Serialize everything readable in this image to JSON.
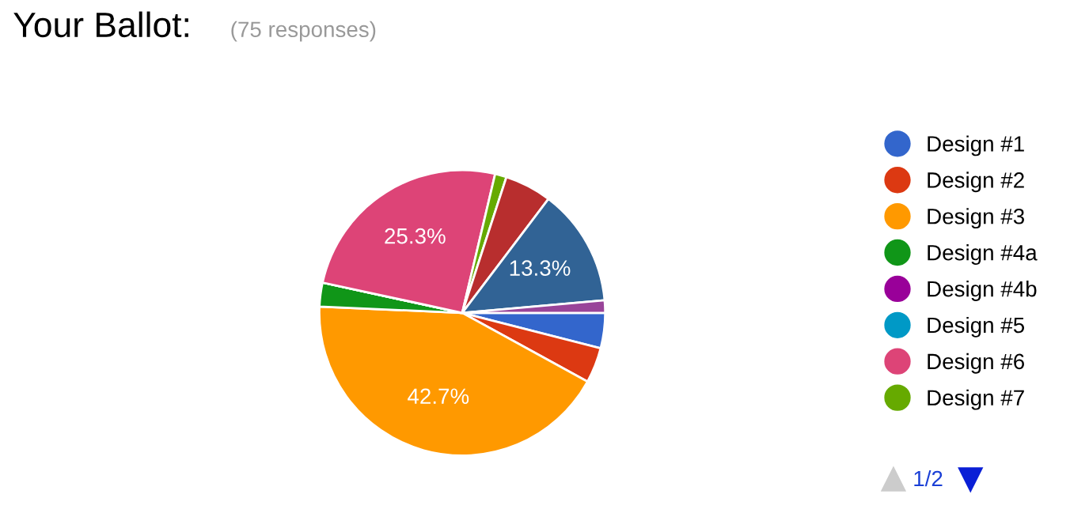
{
  "chart_data": {
    "type": "pie",
    "title": "Your Ballot:",
    "subtitle": "(75 responses)",
    "categories": [
      "Design #1",
      "Design #2",
      "Design #3",
      "Design #4a",
      "Design #4b",
      "Design #5",
      "Design #6",
      "Design #7",
      null,
      null,
      null
    ],
    "values": [
      4.0,
      4.0,
      42.7,
      2.7,
      0,
      0,
      25.3,
      1.3,
      5.3,
      13.3,
      1.4
    ],
    "value_labels": [
      null,
      null,
      "42.7%",
      null,
      null,
      null,
      "25.3%",
      null,
      null,
      "13.3%",
      null
    ],
    "colors": [
      "#3366cc",
      "#dc3912",
      "#ff9900",
      "#109618",
      "#990099",
      "#0099c6",
      "#dd4477",
      "#66aa00",
      "#b82e2e",
      "#316395",
      "#994499"
    ],
    "legend": "right",
    "annotations": [
      "1/2"
    ]
  }
}
